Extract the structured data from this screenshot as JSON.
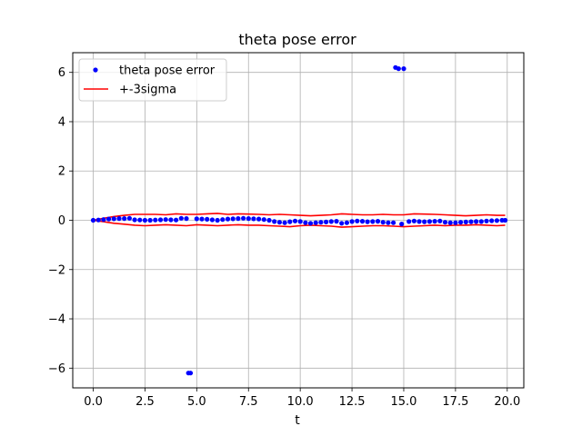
{
  "chart_data": {
    "type": "scatter",
    "title": "theta pose error",
    "xlabel": "t",
    "ylabel": "",
    "xlim": [
      -0.99,
      20.8
    ],
    "ylim": [
      -6.8,
      6.8
    ],
    "xticks": [
      0.0,
      2.5,
      5.0,
      7.5,
      10.0,
      12.5,
      15.0,
      17.5,
      20.0
    ],
    "xtick_labels": [
      "0.0",
      "2.5",
      "5.0",
      "7.5",
      "10.0",
      "12.5",
      "15.0",
      "17.5",
      "20.0"
    ],
    "yticks": [
      -6,
      -4,
      -2,
      0,
      2,
      4,
      6
    ],
    "ytick_labels": [
      "−6",
      "−4",
      "−2",
      "0",
      "2",
      "4",
      "6"
    ],
    "grid": true,
    "legend_position": "top-left",
    "series": [
      {
        "name": "theta pose error",
        "style": "points",
        "color": "#0000ff",
        "x": [
          0.0,
          0.25,
          0.5,
          0.75,
          1.0,
          1.25,
          1.5,
          1.75,
          2.0,
          2.25,
          2.5,
          2.75,
          3.0,
          3.25,
          3.5,
          3.75,
          4.0,
          4.25,
          4.5,
          4.6,
          4.7,
          5.0,
          5.25,
          5.5,
          5.75,
          6.0,
          6.25,
          6.5,
          6.75,
          7.0,
          7.25,
          7.5,
          7.75,
          8.0,
          8.25,
          8.5,
          8.75,
          9.0,
          9.25,
          9.5,
          9.75,
          10.0,
          10.25,
          10.5,
          10.75,
          11.0,
          11.25,
          11.5,
          11.75,
          12.0,
          12.25,
          12.5,
          12.75,
          13.0,
          13.25,
          13.5,
          13.75,
          14.0,
          14.25,
          14.5,
          14.6,
          14.75,
          14.9,
          15.0,
          15.25,
          15.5,
          15.75,
          16.0,
          16.25,
          16.5,
          16.75,
          17.0,
          17.25,
          17.5,
          17.75,
          18.0,
          18.25,
          18.5,
          18.75,
          19.0,
          19.25,
          19.5,
          19.75,
          19.9
        ],
        "y": [
          0.0,
          0.01,
          0.03,
          0.05,
          0.06,
          0.07,
          0.07,
          0.08,
          0.02,
          0.01,
          0.0,
          0.0,
          0.01,
          0.02,
          0.03,
          0.02,
          0.01,
          0.08,
          0.07,
          -6.2,
          -6.2,
          0.06,
          0.05,
          0.04,
          0.02,
          0.0,
          0.03,
          0.05,
          0.06,
          0.07,
          0.08,
          0.07,
          0.06,
          0.05,
          0.03,
          0.0,
          -0.05,
          -0.08,
          -0.1,
          -0.06,
          -0.03,
          -0.05,
          -0.1,
          -0.12,
          -0.1,
          -0.08,
          -0.07,
          -0.05,
          -0.04,
          -0.12,
          -0.1,
          -0.05,
          -0.03,
          -0.04,
          -0.06,
          -0.05,
          -0.04,
          -0.08,
          -0.1,
          -0.1,
          6.2,
          6.15,
          -0.15,
          6.15,
          -0.05,
          -0.03,
          -0.05,
          -0.06,
          -0.05,
          -0.04,
          -0.03,
          -0.08,
          -0.1,
          -0.1,
          -0.08,
          -0.07,
          -0.06,
          -0.05,
          -0.05,
          -0.03,
          -0.02,
          -0.01,
          0.0,
          0.0
        ]
      },
      {
        "name": "+-3sigma",
        "style": "line",
        "color": "#ff0000",
        "x": [
          0.0,
          0.5,
          1.0,
          1.5,
          2.0,
          2.5,
          3.0,
          3.5,
          4.0,
          4.5,
          5.0,
          5.5,
          6.0,
          6.5,
          7.0,
          7.5,
          8.0,
          8.5,
          9.0,
          9.5,
          10.0,
          10.5,
          11.0,
          11.5,
          12.0,
          12.5,
          13.0,
          13.5,
          14.0,
          14.5,
          15.0,
          15.5,
          16.0,
          16.5,
          17.0,
          17.5,
          18.0,
          18.5,
          19.0,
          19.5,
          19.9
        ],
        "y": [
          0.0,
          0.08,
          0.15,
          0.2,
          0.24,
          0.24,
          0.24,
          0.22,
          0.26,
          0.24,
          0.24,
          0.26,
          0.28,
          0.24,
          0.26,
          0.25,
          0.24,
          0.22,
          0.24,
          0.22,
          0.2,
          0.18,
          0.2,
          0.22,
          0.26,
          0.24,
          0.22,
          0.22,
          0.24,
          0.22,
          0.22,
          0.26,
          0.25,
          0.24,
          0.22,
          0.2,
          0.18,
          0.2,
          0.22,
          0.2,
          0.2
        ]
      },
      {
        "name": "",
        "style": "line",
        "color": "#ff0000",
        "x": [
          0.0,
          0.5,
          1.0,
          1.5,
          2.0,
          2.5,
          3.0,
          3.5,
          4.0,
          4.5,
          5.0,
          5.5,
          6.0,
          6.5,
          7.0,
          7.5,
          8.0,
          8.5,
          9.0,
          9.5,
          10.0,
          10.5,
          11.0,
          11.5,
          12.0,
          12.5,
          13.0,
          13.5,
          14.0,
          14.5,
          15.0,
          15.5,
          16.0,
          16.5,
          17.0,
          17.5,
          18.0,
          18.5,
          19.0,
          19.5,
          19.9
        ],
        "y": [
          0.0,
          -0.06,
          -0.12,
          -0.16,
          -0.2,
          -0.22,
          -0.2,
          -0.18,
          -0.2,
          -0.22,
          -0.18,
          -0.2,
          -0.22,
          -0.2,
          -0.18,
          -0.2,
          -0.2,
          -0.22,
          -0.24,
          -0.26,
          -0.22,
          -0.2,
          -0.22,
          -0.24,
          -0.28,
          -0.26,
          -0.24,
          -0.22,
          -0.22,
          -0.24,
          -0.26,
          -0.24,
          -0.22,
          -0.2,
          -0.22,
          -0.2,
          -0.2,
          -0.18,
          -0.2,
          -0.22,
          -0.2
        ]
      }
    ]
  }
}
